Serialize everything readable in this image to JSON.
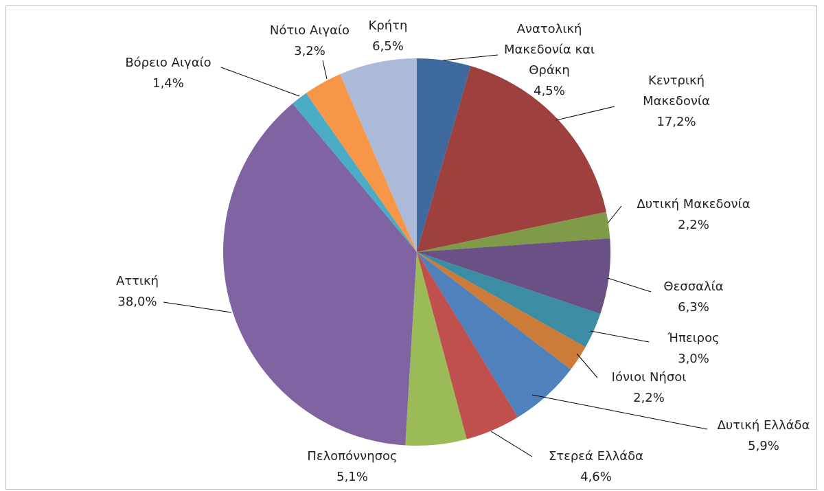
{
  "chart_data": {
    "type": "pie",
    "categories": [
      "Ανατολική Μακεδονία και Θράκη",
      "Κεντρική Μακεδονία",
      "Δυτική Μακεδονία",
      "Θεσσαλία",
      "Ήπειρος",
      "Ιόνιοι Νήσοι",
      "Δυτική Ελλάδα",
      "Στερεά Ελλάδα",
      "Πελοπόννησος",
      "Αττική",
      "Βόρειο Αιγαίο",
      "Νότιο Αιγαίο",
      "Κρήτη"
    ],
    "values": [
      4.5,
      17.2,
      2.2,
      6.3,
      3.0,
      2.2,
      5.9,
      4.6,
      5.1,
      38.0,
      1.4,
      3.2,
      6.5
    ],
    "value_labels": [
      "4,5%",
      "17,2%",
      "2,2%",
      "6,3%",
      "3,0%",
      "2,2%",
      "5,9%",
      "4,6%",
      "5,1%",
      "38,0%",
      "1,4%",
      "3,2%",
      "6,5%"
    ],
    "colors": [
      "#3f6a9e",
      "#9e413e",
      "#7f9a48",
      "#695185",
      "#3c8da3",
      "#cc7b38",
      "#4f81bd",
      "#c0504d",
      "#9bbb59",
      "#8064a2",
      "#4bacc6",
      "#f79646",
      "#aabad7"
    ]
  }
}
